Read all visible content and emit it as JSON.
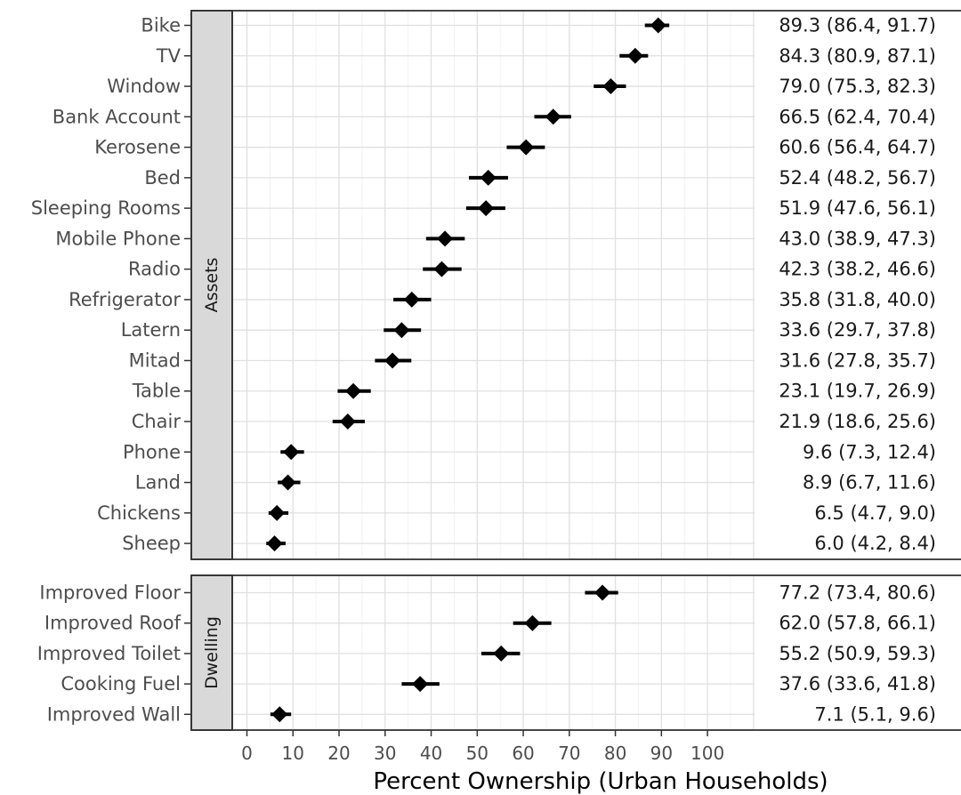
{
  "chart_data": {
    "type": "scatter",
    "xlabel": "Percent Ownership (Urban Households)",
    "x_ticks": [
      0,
      10,
      20,
      30,
      40,
      50,
      60,
      70,
      80,
      90,
      100
    ],
    "xlim": [
      -3.5,
      111
    ],
    "grid": true,
    "panels": [
      {
        "name": "Assets",
        "rows": [
          {
            "category": "Bike",
            "estimate": 89.3,
            "lower": 86.4,
            "upper": 91.7,
            "label": "89.3 (86.4, 91.7)"
          },
          {
            "category": "TV",
            "estimate": 84.3,
            "lower": 80.9,
            "upper": 87.1,
            "label": "84.3 (80.9, 87.1)"
          },
          {
            "category": "Window",
            "estimate": 79.0,
            "lower": 75.3,
            "upper": 82.3,
            "label": "79.0 (75.3, 82.3)"
          },
          {
            "category": "Bank Account",
            "estimate": 66.5,
            "lower": 62.4,
            "upper": 70.4,
            "label": "66.5 (62.4, 70.4)"
          },
          {
            "category": "Kerosene",
            "estimate": 60.6,
            "lower": 56.4,
            "upper": 64.7,
            "label": "60.6 (56.4, 64.7)"
          },
          {
            "category": "Bed",
            "estimate": 52.4,
            "lower": 48.2,
            "upper": 56.7,
            "label": "52.4 (48.2, 56.7)"
          },
          {
            "category": "Sleeping Rooms",
            "estimate": 51.9,
            "lower": 47.6,
            "upper": 56.1,
            "label": "51.9 (47.6, 56.1)"
          },
          {
            "category": "Mobile Phone",
            "estimate": 43.0,
            "lower": 38.9,
            "upper": 47.3,
            "label": "43.0 (38.9, 47.3)"
          },
          {
            "category": "Radio",
            "estimate": 42.3,
            "lower": 38.2,
            "upper": 46.6,
            "label": "42.3 (38.2, 46.6)"
          },
          {
            "category": "Refrigerator",
            "estimate": 35.8,
            "lower": 31.8,
            "upper": 40.0,
            "label": "35.8 (31.8, 40.0)"
          },
          {
            "category": "Latern",
            "estimate": 33.6,
            "lower": 29.7,
            "upper": 37.8,
            "label": "33.6 (29.7, 37.8)"
          },
          {
            "category": "Mitad",
            "estimate": 31.6,
            "lower": 27.8,
            "upper": 35.7,
            "label": "31.6 (27.8, 35.7)"
          },
          {
            "category": "Table",
            "estimate": 23.1,
            "lower": 19.7,
            "upper": 26.9,
            "label": "23.1 (19.7, 26.9)"
          },
          {
            "category": "Chair",
            "estimate": 21.9,
            "lower": 18.6,
            "upper": 25.6,
            "label": "21.9 (18.6, 25.6)"
          },
          {
            "category": "Phone",
            "estimate": 9.6,
            "lower": 7.3,
            "upper": 12.4,
            "label": "9.6 (7.3, 12.4)"
          },
          {
            "category": "Land",
            "estimate": 8.9,
            "lower": 6.7,
            "upper": 11.6,
            "label": "8.9 (6.7, 11.6)"
          },
          {
            "category": "Chickens",
            "estimate": 6.5,
            "lower": 4.7,
            "upper": 9.0,
            "label": "6.5 (4.7, 9.0)"
          },
          {
            "category": "Sheep",
            "estimate": 6.0,
            "lower": 4.2,
            "upper": 8.4,
            "label": "6.0 (4.2, 8.4)"
          }
        ]
      },
      {
        "name": "Dwelling",
        "rows": [
          {
            "category": "Improved Floor",
            "estimate": 77.2,
            "lower": 73.4,
            "upper": 80.6,
            "label": "77.2 (73.4, 80.6)"
          },
          {
            "category": "Improved Roof",
            "estimate": 62.0,
            "lower": 57.8,
            "upper": 66.1,
            "label": "62.0 (57.8, 66.1)"
          },
          {
            "category": "Improved Toilet",
            "estimate": 55.2,
            "lower": 50.9,
            "upper": 59.3,
            "label": "55.2 (50.9, 59.3)"
          },
          {
            "category": "Cooking Fuel",
            "estimate": 37.6,
            "lower": 33.6,
            "upper": 41.8,
            "label": "37.6 (33.6, 41.8)"
          },
          {
            "category": "Improved Wall",
            "estimate": 7.1,
            "lower": 5.1,
            "upper": 9.6,
            "label": "7.1 (5.1, 9.6)"
          }
        ]
      }
    ]
  }
}
